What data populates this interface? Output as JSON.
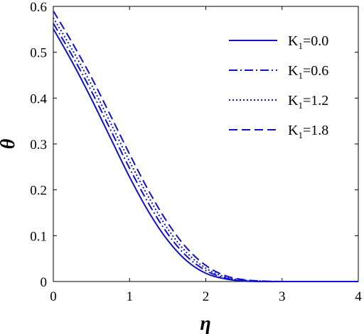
{
  "chart_data": {
    "type": "line",
    "xlabel": "η",
    "ylabel": "θ",
    "xlim": [
      0,
      4
    ],
    "ylim": [
      0,
      0.6
    ],
    "xticks": [
      0,
      1,
      2,
      3,
      4
    ],
    "yticks": [
      0,
      0.1,
      0.2,
      0.3,
      0.4,
      0.5,
      0.6
    ],
    "xtick_labels": [
      "0",
      "1",
      "2",
      "3",
      "4"
    ],
    "ytick_labels": [
      "0",
      "0.1",
      "0.2",
      "0.3",
      "0.4",
      "0.5",
      "0.6"
    ],
    "grid": false,
    "legend_position": "top-right",
    "line_color": "#1010cc",
    "x": [
      0,
      0.25,
      0.5,
      0.75,
      1.0,
      1.25,
      1.5,
      1.75,
      2.0,
      2.25,
      2.5,
      2.75,
      3.0,
      3.25,
      3.5,
      3.75,
      4.0
    ],
    "series": [
      {
        "name_main": "K",
        "name_sub": "1",
        "name_rest": "=0.0",
        "dash": "solid",
        "values": [
          0.551,
          0.478,
          0.398,
          0.313,
          0.228,
          0.152,
          0.09,
          0.045,
          0.018,
          0.006,
          0.001,
          0.0,
          0.0,
          0.0,
          0.0,
          0.0,
          0.0
        ]
      },
      {
        "name_main": "K",
        "name_sub": "1",
        "name_rest": "=0.6",
        "dash": "dashdot",
        "values": [
          0.563,
          0.492,
          0.415,
          0.331,
          0.247,
          0.17,
          0.104,
          0.055,
          0.024,
          0.008,
          0.002,
          0.0,
          0.0,
          0.0,
          0.0,
          0.0,
          0.0
        ]
      },
      {
        "name_main": "K",
        "name_sub": "1",
        "name_rest": "=1.2",
        "dash": "dotted",
        "values": [
          0.575,
          0.505,
          0.429,
          0.346,
          0.262,
          0.184,
          0.115,
          0.063,
          0.029,
          0.01,
          0.003,
          0.001,
          0.0,
          0.0,
          0.0,
          0.0,
          0.0
        ]
      },
      {
        "name_main": "K",
        "name_sub": "1",
        "name_rest": "=1.8",
        "dash": "dashed",
        "values": [
          0.59,
          0.52,
          0.445,
          0.362,
          0.278,
          0.198,
          0.128,
          0.073,
          0.035,
          0.013,
          0.004,
          0.001,
          0.0,
          0.0,
          0.0,
          0.0,
          0.0
        ]
      }
    ]
  }
}
